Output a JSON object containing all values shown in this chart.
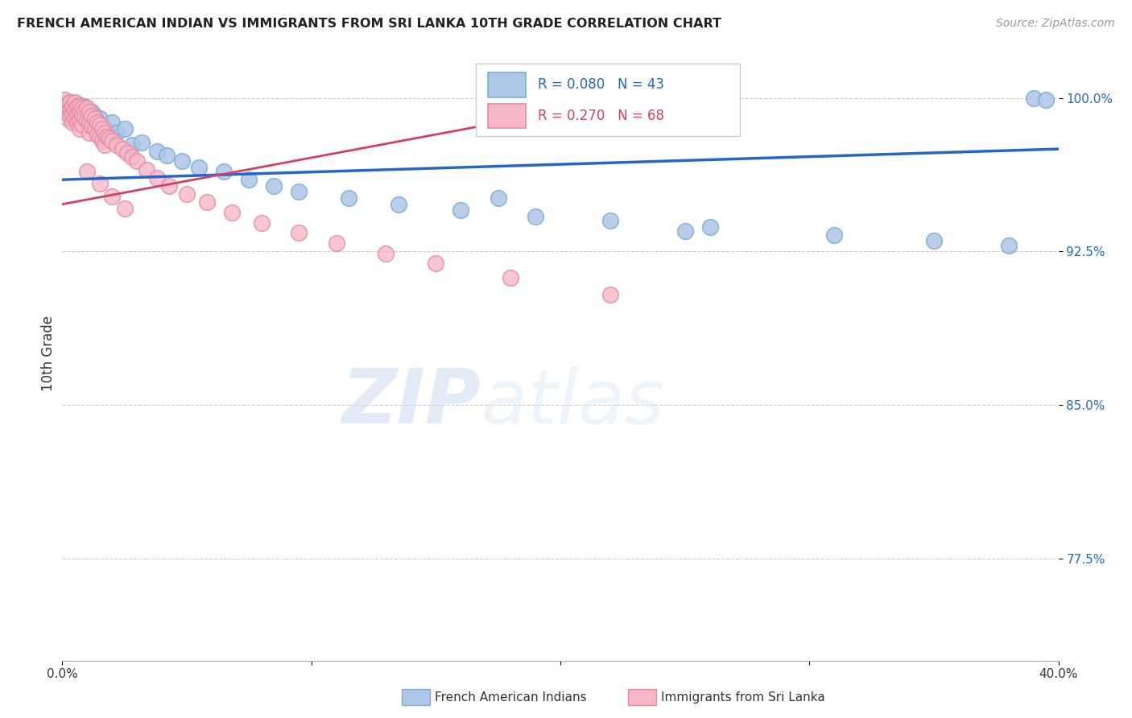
{
  "title": "FRENCH AMERICAN INDIAN VS IMMIGRANTS FROM SRI LANKA 10TH GRADE CORRELATION CHART",
  "source": "Source: ZipAtlas.com",
  "ylabel": "10th Grade",
  "watermark_zip": "ZIP",
  "watermark_atlas": "atlas",
  "legend_r1": "R = 0.080",
  "legend_n1": "N = 43",
  "legend_r2": "R = 0.270",
  "legend_n2": "N = 68",
  "blue_face": "#aec6e8",
  "blue_edge": "#7bafd4",
  "pink_face": "#f4b8c8",
  "pink_edge": "#e88aa0",
  "line_blue": "#2566c8",
  "line_pink": "#d44060",
  "ytick_color": "#2566c8",
  "xlim": [
    0.0,
    0.4
  ],
  "ylim": [
    0.725,
    1.025
  ],
  "yticks": [
    0.775,
    0.85,
    0.925,
    1.0
  ],
  "ytick_labels": [
    "77.5%",
    "85.0%",
    "92.5%",
    "100.0%"
  ],
  "xticks": [
    0.0,
    0.1,
    0.2,
    0.3,
    0.4
  ],
  "xtick_labels": [
    "0.0%",
    "",
    "",
    "",
    "40.0%"
  ],
  "blue_x": [
    0.001,
    0.002,
    0.003,
    0.004,
    0.005,
    0.006,
    0.007,
    0.008,
    0.009,
    0.01,
    0.011,
    0.012,
    0.013,
    0.014,
    0.015,
    0.016,
    0.018,
    0.02,
    0.022,
    0.025,
    0.028,
    0.032,
    0.038,
    0.042,
    0.048,
    0.055,
    0.065,
    0.075,
    0.085,
    0.095,
    0.115,
    0.135,
    0.16,
    0.19,
    0.22,
    0.26,
    0.31,
    0.35,
    0.38,
    0.39,
    0.395,
    0.25,
    0.175
  ],
  "blue_y": [
    0.993,
    0.997,
    0.998,
    0.996,
    0.994,
    0.997,
    0.995,
    0.993,
    0.996,
    0.994,
    0.99,
    0.993,
    0.991,
    0.988,
    0.99,
    0.986,
    0.984,
    0.988,
    0.983,
    0.985,
    0.977,
    0.978,
    0.974,
    0.972,
    0.969,
    0.966,
    0.964,
    0.96,
    0.957,
    0.954,
    0.951,
    0.948,
    0.945,
    0.942,
    0.94,
    0.937,
    0.933,
    0.93,
    0.928,
    1.0,
    0.999,
    0.935,
    0.951
  ],
  "pink_x": [
    0.001,
    0.001,
    0.002,
    0.002,
    0.002,
    0.003,
    0.003,
    0.003,
    0.004,
    0.004,
    0.004,
    0.005,
    0.005,
    0.005,
    0.006,
    0.006,
    0.006,
    0.007,
    0.007,
    0.007,
    0.007,
    0.008,
    0.008,
    0.008,
    0.009,
    0.009,
    0.01,
    0.01,
    0.011,
    0.011,
    0.011,
    0.012,
    0.012,
    0.013,
    0.013,
    0.014,
    0.014,
    0.015,
    0.015,
    0.016,
    0.016,
    0.017,
    0.017,
    0.018,
    0.019,
    0.02,
    0.022,
    0.024,
    0.026,
    0.028,
    0.03,
    0.034,
    0.038,
    0.043,
    0.05,
    0.058,
    0.068,
    0.08,
    0.095,
    0.11,
    0.13,
    0.15,
    0.18,
    0.22,
    0.01,
    0.015,
    0.02,
    0.025
  ],
  "pink_y": [
    0.999,
    0.995,
    0.997,
    0.993,
    0.99,
    0.998,
    0.994,
    0.991,
    0.996,
    0.992,
    0.988,
    0.998,
    0.994,
    0.99,
    0.996,
    0.992,
    0.988,
    0.996,
    0.993,
    0.989,
    0.985,
    0.995,
    0.991,
    0.987,
    0.994,
    0.99,
    0.995,
    0.989,
    0.993,
    0.988,
    0.983,
    0.991,
    0.986,
    0.99,
    0.985,
    0.988,
    0.982,
    0.987,
    0.981,
    0.985,
    0.979,
    0.983,
    0.977,
    0.981,
    0.98,
    0.979,
    0.977,
    0.975,
    0.973,
    0.971,
    0.969,
    0.965,
    0.961,
    0.957,
    0.953,
    0.949,
    0.944,
    0.939,
    0.934,
    0.929,
    0.924,
    0.919,
    0.912,
    0.904,
    0.964,
    0.958,
    0.952,
    0.946
  ],
  "blue_line_x": [
    0.0,
    0.4
  ],
  "blue_line_y": [
    0.96,
    0.975
  ],
  "pink_line_x": [
    0.0,
    0.22
  ],
  "pink_line_y": [
    0.948,
    0.998
  ]
}
